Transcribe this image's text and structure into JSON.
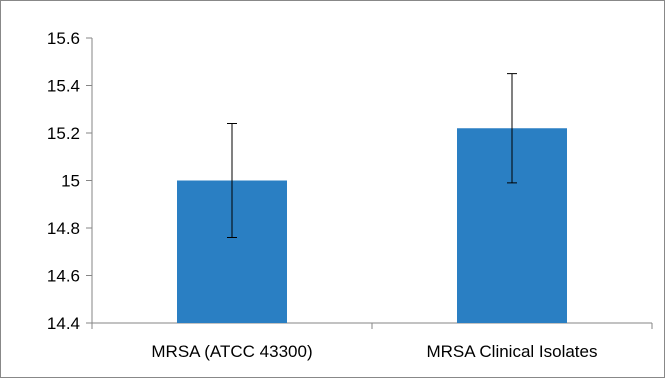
{
  "chart_data": {
    "type": "bar",
    "title": "",
    "xlabel": "",
    "ylabel": "",
    "categories": [
      "MRSA (ATCC 43300)",
      "MRSA Clinical Isolates"
    ],
    "values": [
      15.0,
      15.22
    ],
    "error_bars": [
      {
        "low": 14.76,
        "high": 15.24
      },
      {
        "low": 14.99,
        "high": 15.45
      }
    ],
    "ylim": [
      14.4,
      15.6
    ],
    "yticks": [
      "14.4",
      "14.6",
      "14.8",
      "15",
      "15.2",
      "15.4",
      "15.6"
    ],
    "bar_color": "#2a7fc3",
    "grid": false,
    "legend": "none"
  }
}
